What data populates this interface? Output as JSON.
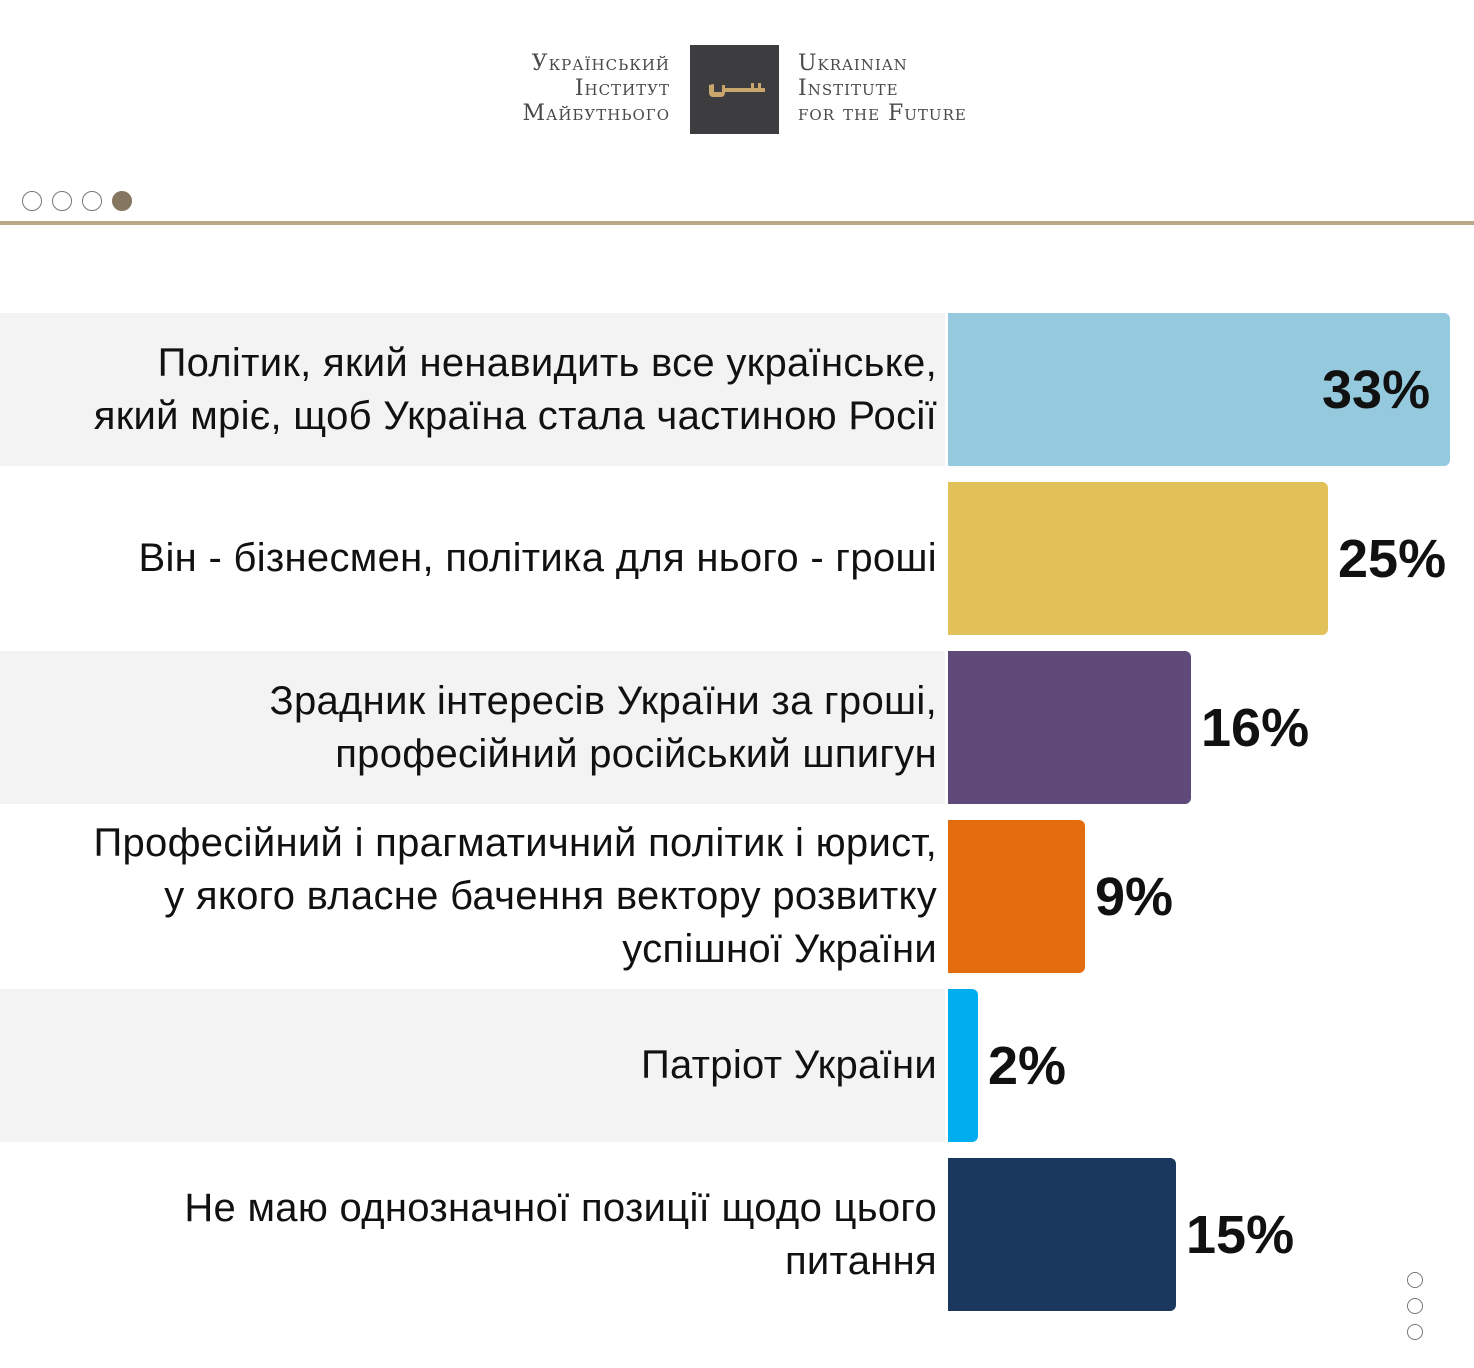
{
  "logo": {
    "ua_lines": [
      "Український",
      "Інститут",
      "Майбутнього"
    ],
    "en_lines": [
      "Ukrainian",
      "Institute",
      "for the Future"
    ],
    "mark_color": "#c9a66b",
    "box_color": "#3d3d3f"
  },
  "pager_top": {
    "count": 4,
    "active": 3
  },
  "pager_side": {
    "count": 3
  },
  "chart_data": {
    "type": "bar",
    "orientation": "horizontal",
    "categories": [
      "Політик, який ненавидить все українське, який мріє, щоб Україна стала частиною Росії",
      "Він - бізнесмен, політика для нього - гроші",
      "Зрадник інтересів України за гроші, професійний російський шпигун",
      "Професійний і прагматичний політик і юрист, у якого власне бачення вектору розвитку успішної України",
      "Патріот України",
      "Не маю однозначної позиції щодо цього питання"
    ],
    "label_lines": [
      [
        "Політик, який ненавидить все українське,",
        "який мріє, щоб Україна стала частиною Росії"
      ],
      [
        "Він - бізнесмен, політика для нього - гроші"
      ],
      [
        "Зрадник інтересів України за гроші,",
        "професійний російський шпигун"
      ],
      [
        "Професійний і прагматичний політик і юрист,",
        "у якого власне бачення вектору розвитку",
        "успішної України"
      ],
      [
        "Патріот України"
      ],
      [
        "Не маю однозначної позиції щодо цього",
        "питання"
      ]
    ],
    "values": [
      33,
      25,
      16,
      9,
      2,
      15
    ],
    "value_labels": [
      "33%",
      "25%",
      "16%",
      "9%",
      "2%",
      "15%"
    ],
    "colors": [
      "#95cade",
      "#e2c158",
      "#5f4a7a",
      "#e36c0e",
      "#00aeef",
      "#1a375e"
    ],
    "xlim": [
      0,
      33
    ],
    "grid": false,
    "legend": "none"
  }
}
